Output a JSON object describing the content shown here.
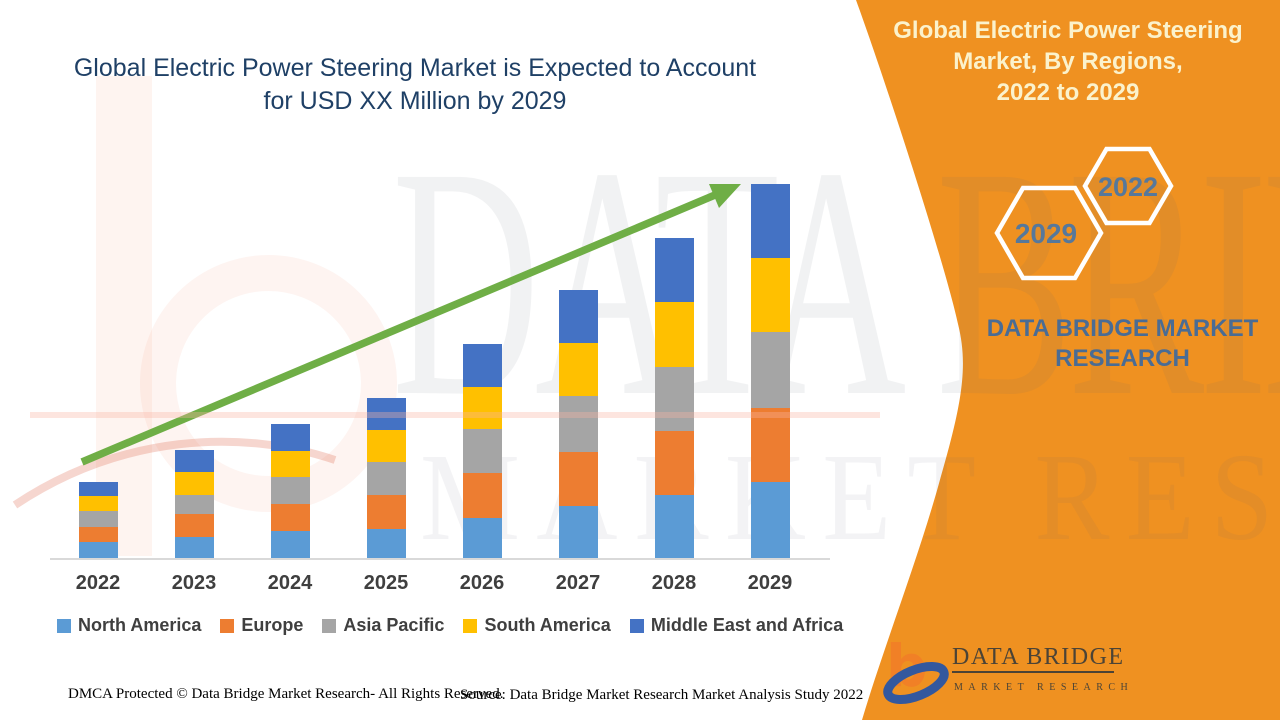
{
  "header": {
    "title_line1": "Global Electric Power Steering Market is Expected to Account",
    "title_line2": "for USD XX Million by 2029",
    "title_color": "#1F4066"
  },
  "side_panel": {
    "bg": "#EF9121",
    "title": "Global Electric Power Steering\nMarket, By Regions,\n2022 to 2029",
    "title_color": "#FBF2CC",
    "hexagons": [
      {
        "label": "2022"
      },
      {
        "label": "2029"
      }
    ],
    "hex_label_color": "#56789B",
    "brand_text": "DATA BRIDGE MARKET\nRESEARCH",
    "brand_text_color": "#4A6C94",
    "logo": {
      "name_text": "DATA BRIDGE",
      "sub_text": "MARKET RESEARCH",
      "b_color": "#F18026",
      "swoosh_color": "#33589E",
      "text_color": "#4B4336"
    }
  },
  "watermark": {
    "line1": "DATA BRIDGE",
    "line2": "MARKET RESEARCH"
  },
  "chart_data": {
    "type": "bar",
    "stacked": true,
    "title": "Global Electric Power Steering Market is Expected to Account for USD XX Million by 2029",
    "categories": [
      "2022",
      "2023",
      "2024",
      "2025",
      "2026",
      "2027",
      "2028",
      "2029"
    ],
    "series": [
      {
        "name": "North America",
        "color": "#5B9BD5",
        "values": [
          16,
          21,
          27,
          29,
          40,
          52,
          63,
          76
        ]
      },
      {
        "name": "Europe",
        "color": "#ED7D31",
        "values": [
          15,
          23,
          27,
          34,
          45,
          54,
          64,
          74
        ]
      },
      {
        "name": "Asia Pacific",
        "color": "#A5A5A5",
        "values": [
          16,
          19,
          27,
          33,
          44,
          56,
          64,
          76
        ]
      },
      {
        "name": "South America",
        "color": "#FFC000",
        "values": [
          15,
          23,
          26,
          32,
          42,
          53,
          65,
          74
        ]
      },
      {
        "name": "Middle East and Africa",
        "color": "#4472C4",
        "values": [
          14,
          22,
          27,
          32,
          43,
          53,
          64,
          74
        ]
      }
    ],
    "value_axis": {
      "visible": false,
      "note": "no y-axis shown; magnitudes estimated in relative units (USD XX Million not disclosed)"
    },
    "grid": false,
    "legend_position": "bottom",
    "trend_line": {
      "type": "arrow",
      "color": "#6FAE46"
    }
  },
  "footer": {
    "left": "DMCA Protected © Data Bridge Market Research- All Rights Reserved.",
    "right": "Source: Data Bridge Market Research Market Analysis Study 2022"
  }
}
